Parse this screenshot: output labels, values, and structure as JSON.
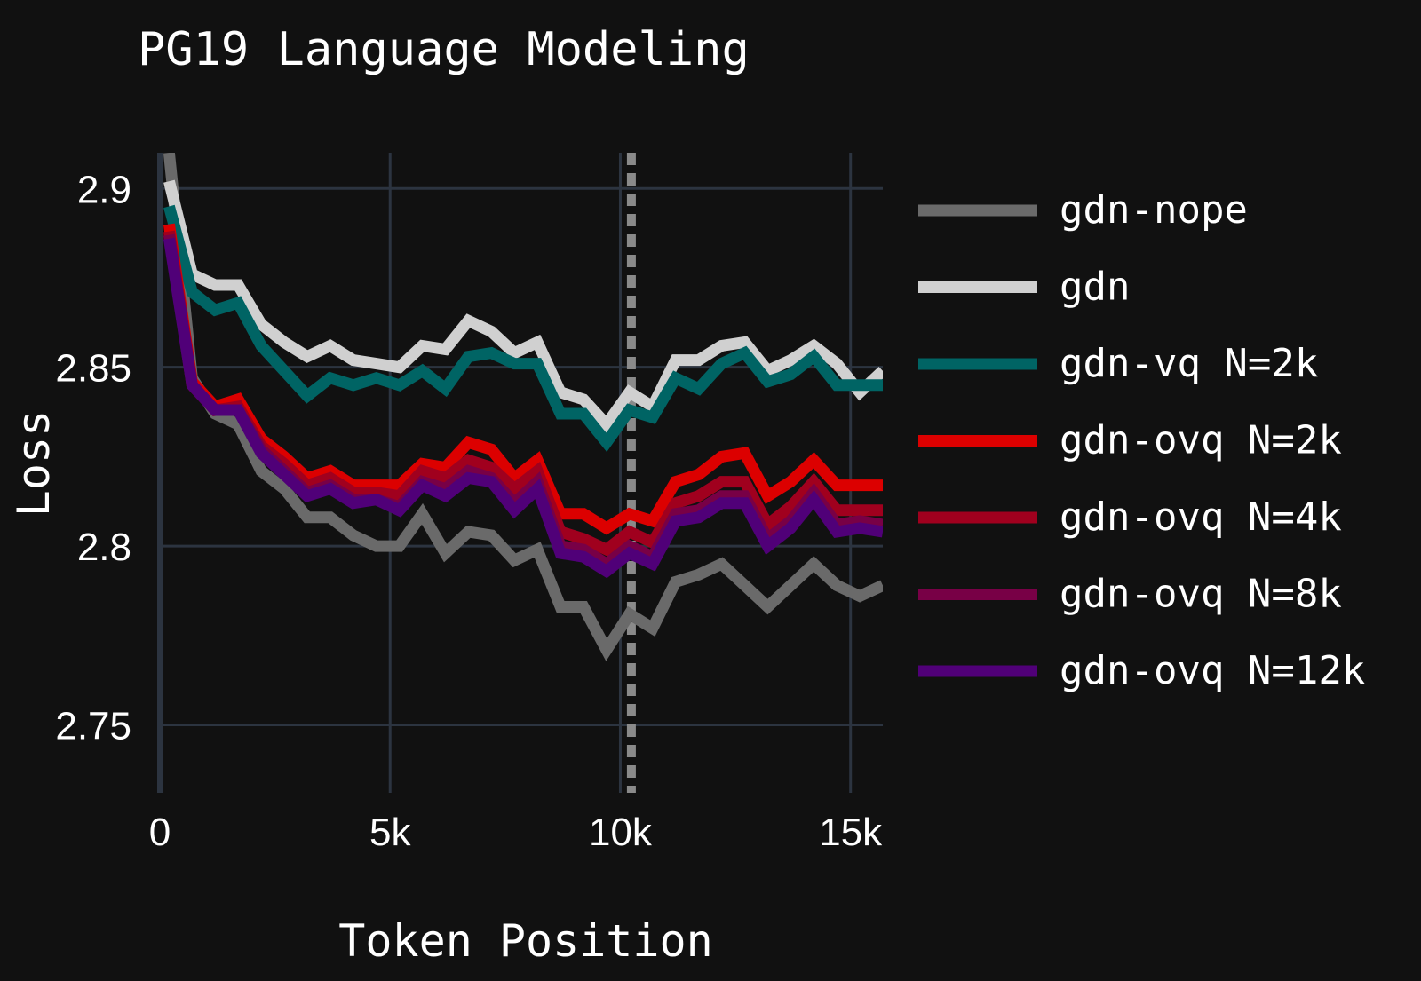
{
  "chart_data": {
    "type": "line",
    "title": "PG19 Language Modeling",
    "xlabel": "Token Position",
    "ylabel": "Loss",
    "xlim": [
      0,
      15700
    ],
    "ylim": [
      2.731,
      2.91
    ],
    "x_ticks": [
      {
        "value": 0,
        "label": "0"
      },
      {
        "value": 5000,
        "label": "5k"
      },
      {
        "value": 10000,
        "label": "10k"
      },
      {
        "value": 15000,
        "label": "15k"
      }
    ],
    "y_ticks": [
      {
        "value": 2.75,
        "label": "2.75"
      },
      {
        "value": 2.8,
        "label": "2.8"
      },
      {
        "value": 2.85,
        "label": "2.85"
      },
      {
        "value": 2.9,
        "label": "2.9"
      }
    ],
    "grid": true,
    "legend_position": "right",
    "reference_line": {
      "x": 10240,
      "style": "dashed",
      "color": "#8a8a8a"
    },
    "x": [
      200,
      700,
      1200,
      1700,
      2200,
      2700,
      3200,
      3700,
      4200,
      4700,
      5200,
      5700,
      6200,
      6700,
      7200,
      7700,
      8200,
      8700,
      9200,
      9700,
      10200,
      10700,
      11200,
      11700,
      12200,
      12700,
      13200,
      13700,
      14200,
      14700,
      15200,
      15700
    ],
    "series": [
      {
        "name": "gdn-nope",
        "color": "#6a6a6a",
        "values": [
          2.91,
          2.847,
          2.837,
          2.834,
          2.821,
          2.816,
          2.808,
          2.808,
          2.803,
          2.8,
          2.8,
          2.809,
          2.798,
          2.804,
          2.803,
          2.796,
          2.799,
          2.783,
          2.783,
          2.771,
          2.781,
          2.777,
          2.79,
          2.792,
          2.795,
          2.789,
          2.783,
          2.789,
          2.795,
          2.789,
          2.786,
          2.789
        ]
      },
      {
        "name": "gdn",
        "color": "#d0d0d0",
        "values": [
          2.902,
          2.876,
          2.873,
          2.873,
          2.862,
          2.857,
          2.853,
          2.856,
          2.852,
          2.851,
          2.85,
          2.856,
          2.855,
          2.863,
          2.86,
          2.854,
          2.857,
          2.843,
          2.841,
          2.834,
          2.843,
          2.839,
          2.852,
          2.852,
          2.856,
          2.857,
          2.849,
          2.852,
          2.856,
          2.851,
          2.843,
          2.849
        ]
      },
      {
        "name": "gdn-vq N=2k",
        "color": "#006464",
        "values": [
          2.895,
          2.871,
          2.866,
          2.868,
          2.856,
          2.849,
          2.842,
          2.847,
          2.845,
          2.847,
          2.845,
          2.849,
          2.844,
          2.853,
          2.854,
          2.851,
          2.851,
          2.837,
          2.837,
          2.829,
          2.838,
          2.836,
          2.847,
          2.844,
          2.851,
          2.854,
          2.846,
          2.848,
          2.853,
          2.845,
          2.845,
          2.845
        ]
      },
      {
        "name": "gdn-ovq N=2k",
        "color": "#dc0000",
        "values": [
          2.89,
          2.846,
          2.839,
          2.841,
          2.83,
          2.825,
          2.819,
          2.821,
          2.817,
          2.817,
          2.817,
          2.823,
          2.822,
          2.829,
          2.827,
          2.819,
          2.824,
          2.809,
          2.809,
          2.805,
          2.809,
          2.807,
          2.818,
          2.82,
          2.825,
          2.826,
          2.814,
          2.818,
          2.824,
          2.817,
          2.817,
          2.817
        ]
      },
      {
        "name": "gdn-ovq N=4k",
        "color": "#a0001e",
        "values": [
          2.888,
          2.845,
          2.838,
          2.839,
          2.828,
          2.823,
          2.817,
          2.819,
          2.815,
          2.815,
          2.814,
          2.821,
          2.819,
          2.824,
          2.822,
          2.816,
          2.821,
          2.804,
          2.802,
          2.799,
          2.804,
          2.801,
          2.812,
          2.814,
          2.818,
          2.818,
          2.806,
          2.811,
          2.818,
          2.81,
          2.81,
          2.81
        ]
      },
      {
        "name": "gdn-ovq N=8k",
        "color": "#780046",
        "values": [
          2.887,
          2.845,
          2.838,
          2.838,
          2.827,
          2.821,
          2.815,
          2.817,
          2.813,
          2.813,
          2.811,
          2.818,
          2.816,
          2.821,
          2.819,
          2.812,
          2.818,
          2.8,
          2.799,
          2.795,
          2.8,
          2.797,
          2.809,
          2.81,
          2.814,
          2.814,
          2.802,
          2.807,
          2.815,
          2.806,
          2.807,
          2.806
        ]
      },
      {
        "name": "gdn-ovq N=12k",
        "color": "#500078",
        "values": [
          2.886,
          2.845,
          2.838,
          2.838,
          2.826,
          2.82,
          2.814,
          2.816,
          2.812,
          2.813,
          2.81,
          2.817,
          2.814,
          2.819,
          2.818,
          2.81,
          2.816,
          2.798,
          2.797,
          2.793,
          2.798,
          2.795,
          2.807,
          2.808,
          2.812,
          2.812,
          2.8,
          2.805,
          2.813,
          2.804,
          2.805,
          2.804
        ]
      }
    ]
  }
}
